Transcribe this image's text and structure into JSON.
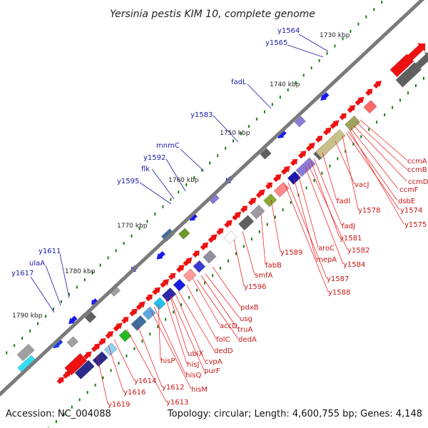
{
  "title": "Yersinia pestis KIM 10, complete genome",
  "footer": {
    "accession": "Accession: NC_004088",
    "summary": "Topology: circular; Length: 4,600,755 bp; Genes: 4,148"
  },
  "colors": {
    "backbone": "#7a7a7a",
    "forward_gene": "#ee1111",
    "blue_label": "#1a1aa6",
    "red_label": "#c81414",
    "tick": "#1a7a1a"
  },
  "ruler": [
    {
      "label": "1730 kbp"
    },
    {
      "label": "1740 kbp"
    },
    {
      "label": "1750 kbp"
    },
    {
      "label": "1760 kbp"
    },
    {
      "label": "1770 kbp"
    },
    {
      "label": "1780 kbp"
    },
    {
      "label": "1790 kbp"
    }
  ],
  "outer_labels": [
    {
      "text": "y1564"
    },
    {
      "text": "y1565"
    },
    {
      "text": "fadL"
    },
    {
      "text": "y1583"
    },
    {
      "text": "mnmC"
    },
    {
      "text": "y1592"
    },
    {
      "text": "flk"
    },
    {
      "text": "y1595"
    },
    {
      "text": "y1611"
    },
    {
      "text": "ulaA"
    },
    {
      "text": "y1617"
    }
  ],
  "inner_labels": [
    {
      "text": "ccmA"
    },
    {
      "text": "ccmB"
    },
    {
      "text": "ccmD"
    },
    {
      "text": "ccmF"
    },
    {
      "text": "vacJ"
    },
    {
      "text": "dsbE"
    },
    {
      "text": "fadI"
    },
    {
      "text": "y1578"
    },
    {
      "text": "y1574"
    },
    {
      "text": "y1575"
    },
    {
      "text": "fadJ"
    },
    {
      "text": "aroC"
    },
    {
      "text": "y1581"
    },
    {
      "text": "y1582"
    },
    {
      "text": "mepA"
    },
    {
      "text": "y1584"
    },
    {
      "text": "y1589"
    },
    {
      "text": "fabB"
    },
    {
      "text": "y1587"
    },
    {
      "text": "y1588"
    },
    {
      "text": "smfA"
    },
    {
      "text": "y1596"
    },
    {
      "text": "pdxB"
    },
    {
      "text": "usg"
    },
    {
      "text": "accD"
    },
    {
      "text": "truA"
    },
    {
      "text": "dedA"
    },
    {
      "text": "folC"
    },
    {
      "text": "dedD"
    },
    {
      "text": "ubiX"
    },
    {
      "text": "cvpA"
    },
    {
      "text": "hisP"
    },
    {
      "text": "hisJ"
    },
    {
      "text": "purF"
    },
    {
      "text": "hisQ"
    },
    {
      "text": "hisM"
    },
    {
      "text": "y1614"
    },
    {
      "text": "y1612"
    },
    {
      "text": "y1616"
    },
    {
      "text": "y1613"
    },
    {
      "text": "y1619"
    }
  ]
}
